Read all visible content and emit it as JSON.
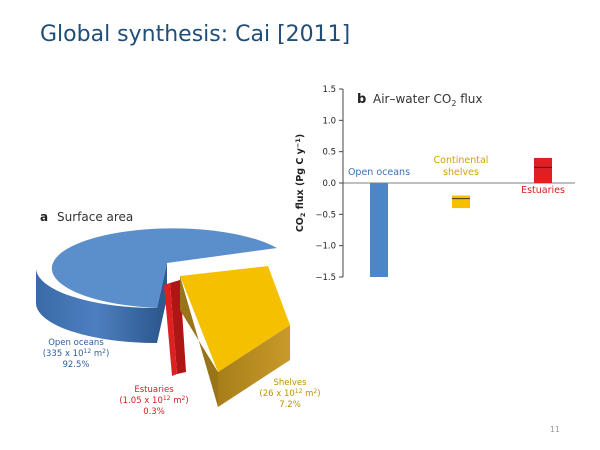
{
  "slide": {
    "title": "Global synthesis: Cai [2011]",
    "page_number": "11"
  },
  "chart_data": [
    {
      "type": "pie",
      "panel_letter": "a",
      "title": "Surface area",
      "slices": [
        {
          "name": "Open oceans",
          "area": "(335 x 10",
          "area_exp": "12",
          "area_unit": " m",
          "area_unit_exp": "2",
          "area_close": ")",
          "percent": "92.5%",
          "value": 92.5,
          "color": "#5b8fcc"
        },
        {
          "name": "Shelves",
          "area": "(26 x 10",
          "area_exp": "12",
          "area_unit": " m",
          "area_unit_exp": "2",
          "area_close": ")",
          "percent": "7.2%",
          "value": 7.2,
          "color": "#f5c000"
        },
        {
          "name": "Estuaries",
          "area": "(1.05 x 10",
          "area_exp": "12",
          "area_unit": " m",
          "area_unit_exp": "2",
          "area_close": ")",
          "percent": "0.3%",
          "value": 0.3,
          "color": "#e02020"
        }
      ]
    },
    {
      "type": "bar",
      "panel_letter": "b",
      "title": "Air–water CO",
      "title_sub": "2",
      "title_end": " flux",
      "ylabel": "CO",
      "ylabel_sub": "2",
      "ylabel_rest": " flux (Pg C y",
      "ylabel_sup": "−1",
      "ylabel_end": ")",
      "ylim": [
        -1.5,
        1.5
      ],
      "yticks": [
        "1.5",
        "1.0",
        "0.5",
        "0.0",
        "−0.5",
        "−1.0",
        "−1.5"
      ],
      "ytick_values": [
        1.5,
        1.0,
        0.5,
        0.0,
        -0.5,
        -1.0,
        -1.5
      ],
      "categories": [
        {
          "label_lines": [
            "Open oceans"
          ],
          "color": "#4a86c8",
          "label_color": "#3b6fb5",
          "low": -1.5,
          "high": 0.0,
          "mid": null
        },
        {
          "label_lines": [
            "Continental",
            "shelves"
          ],
          "color": "#f5c000",
          "label_color": "#d4a000",
          "low": -0.4,
          "high": -0.2,
          "mid": -0.25
        },
        {
          "label_lines": [
            "Estuaries"
          ],
          "color": "#e02020",
          "label_color": "#d42020",
          "low": 0.0,
          "high": 0.4,
          "mid": 0.25
        }
      ]
    }
  ]
}
